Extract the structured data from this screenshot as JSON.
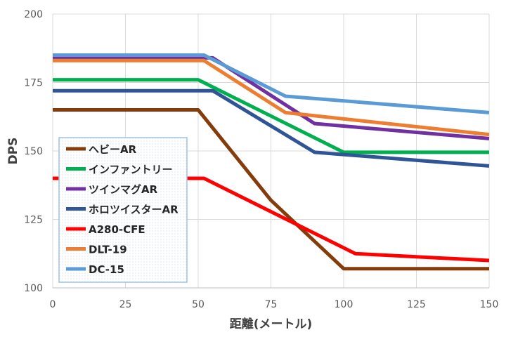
{
  "chart_data": {
    "type": "line",
    "title": "",
    "xlabel": "距離(メートル)",
    "ylabel": "DPS",
    "xlim": [
      0,
      150
    ],
    "ylim": [
      100,
      200
    ],
    "xticks": [
      "0",
      "25",
      "50",
      "75",
      "100",
      "125",
      "150"
    ],
    "yticks": [
      "100",
      "125",
      "150",
      "175",
      "200"
    ],
    "grid": true,
    "legend_position": "left",
    "series": [
      {
        "name": "ヘビーAR",
        "color": "#843C0C",
        "points": [
          [
            0,
            165
          ],
          [
            50,
            165
          ],
          [
            75,
            132
          ],
          [
            100,
            107
          ],
          [
            150,
            107
          ]
        ]
      },
      {
        "name": "インファントリー",
        "color": "#00B050",
        "points": [
          [
            0,
            176
          ],
          [
            50,
            176
          ],
          [
            100,
            149.5
          ],
          [
            150,
            149.5
          ]
        ]
      },
      {
        "name": "ツインマグAR",
        "color": "#7030A0",
        "points": [
          [
            0,
            184
          ],
          [
            55,
            184
          ],
          [
            90,
            160
          ],
          [
            150,
            154.5
          ]
        ]
      },
      {
        "name": "ホロツイスターAR",
        "color": "#2F5597",
        "points": [
          [
            0,
            172
          ],
          [
            55,
            172
          ],
          [
            90,
            149.5
          ],
          [
            150,
            144.5
          ]
        ]
      },
      {
        "name": "A280-CFE",
        "color": "#FF0000",
        "points": [
          [
            0,
            140
          ],
          [
            52,
            140
          ],
          [
            104,
            112.5
          ],
          [
            150,
            110
          ]
        ]
      },
      {
        "name": "DLT-19",
        "color": "#ED7D31",
        "points": [
          [
            0,
            183
          ],
          [
            52,
            183
          ],
          [
            80,
            164
          ],
          [
            150,
            156
          ]
        ]
      },
      {
        "name": "DC-15",
        "color": "#5B9BD5",
        "points": [
          [
            0,
            185
          ],
          [
            52,
            185
          ],
          [
            80,
            170
          ],
          [
            150,
            164
          ]
        ]
      }
    ]
  }
}
